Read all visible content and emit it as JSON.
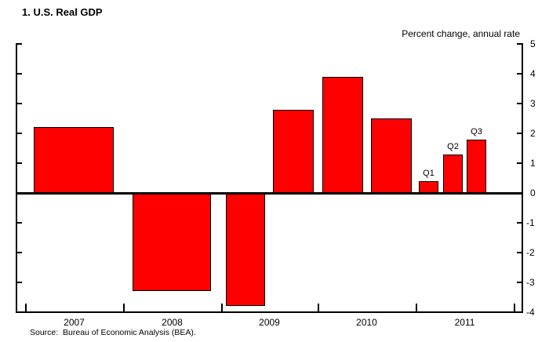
{
  "title": "1. U.S. Real GDP",
  "axis_note": "Percent change, annual rate",
  "source": "Source:  Bureau of Economic Analysis (BEA).",
  "colors": {
    "bar": "#fe0000",
    "bar_border": "#000000",
    "axis": "#000000",
    "background": "#ffffff"
  },
  "chart_data": {
    "type": "bar",
    "title": "1. U.S. Real GDP",
    "ylabel": "Percent change, annual rate",
    "xlabel": "",
    "ylim": [
      -4,
      5
    ],
    "yticks": [
      5,
      4,
      3,
      2,
      1,
      0,
      -1,
      -2,
      -3,
      -4
    ],
    "ytick_side": "right",
    "grid": false,
    "zero_line": true,
    "legend": "none",
    "categories": [
      "2007",
      "2008",
      "2009 H1",
      "2009 H2",
      "2010 H1",
      "2010 H2",
      "2011 Q1",
      "2011 Q2",
      "2011 Q3"
    ],
    "values": [
      2.2,
      -3.3,
      -3.8,
      2.8,
      3.9,
      2.5,
      0.4,
      1.3,
      1.8
    ],
    "bar_labels": [
      "",
      "",
      "",
      "",
      "",
      "",
      "Q1",
      "Q2",
      "Q3"
    ],
    "x_year_labels": [
      "2007",
      "2008",
      "2009",
      "2010",
      "2011"
    ]
  }
}
